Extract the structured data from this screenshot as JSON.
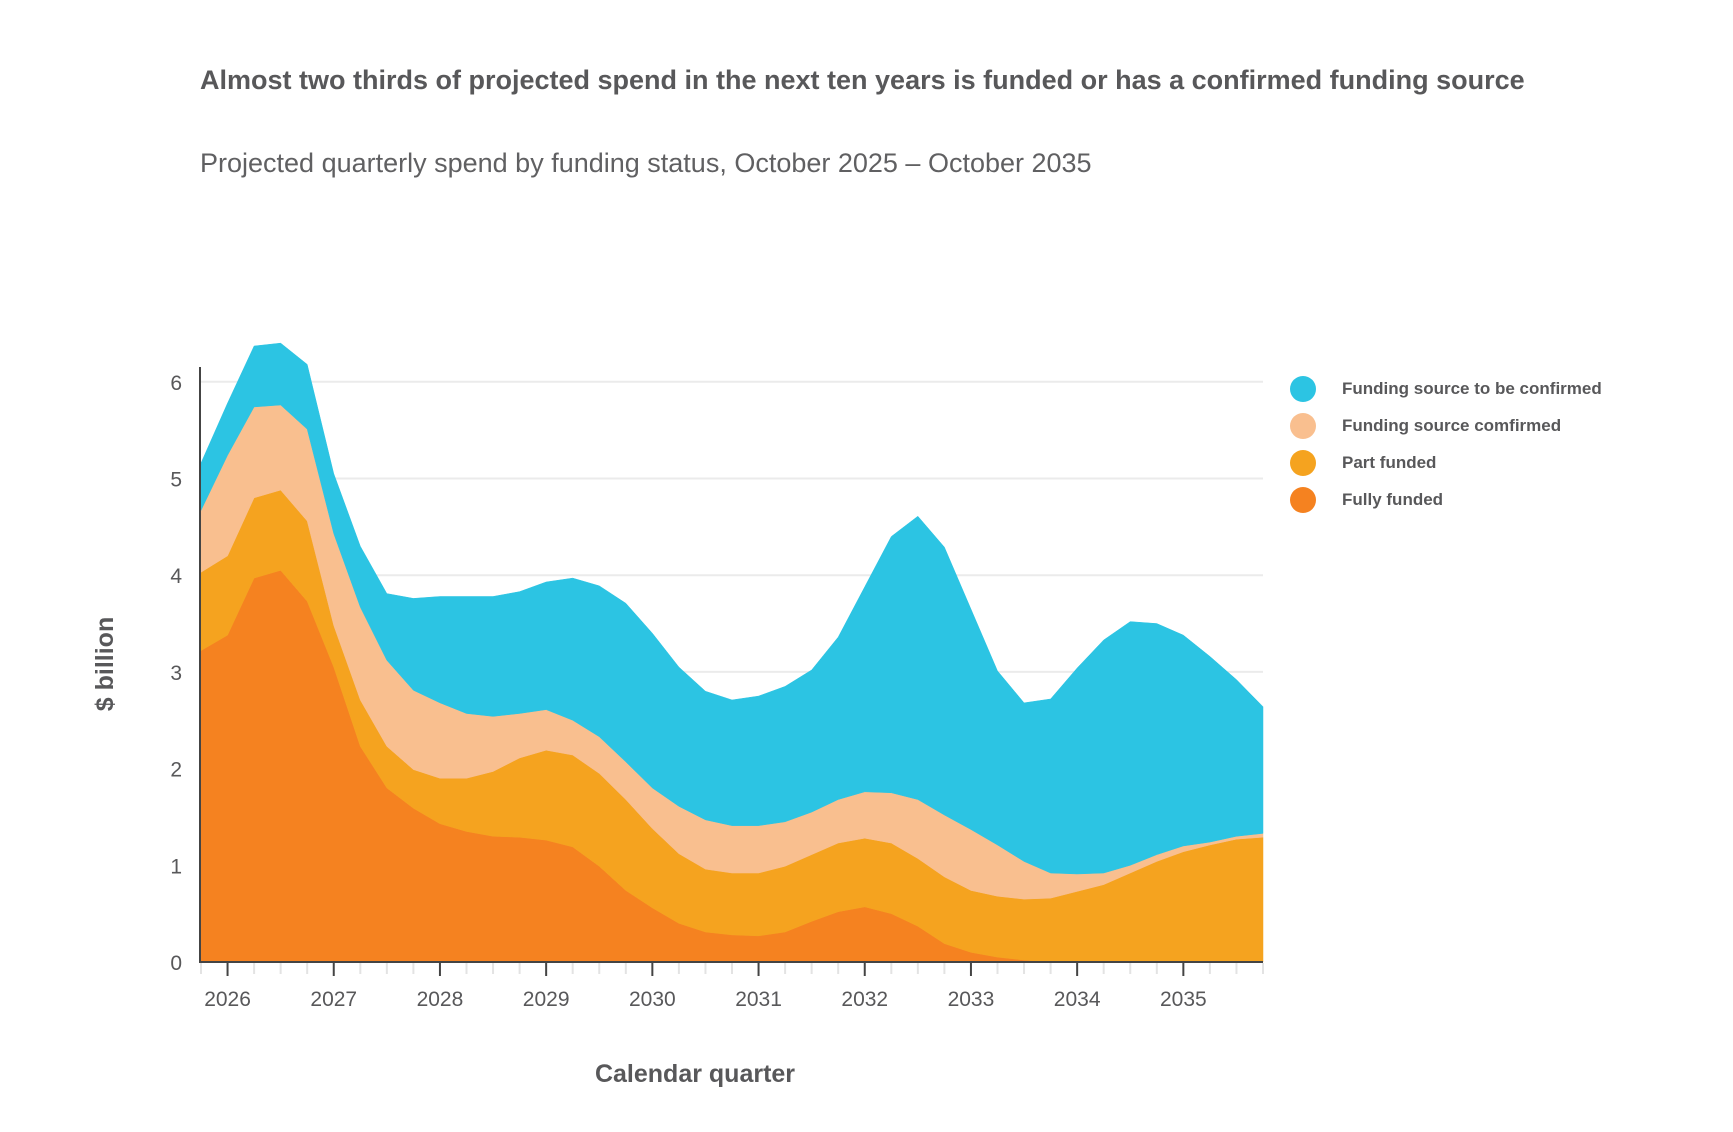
{
  "title": "Almost two thirds of projected spend in the next ten years is funded or has a confirmed funding source",
  "subtitle": "Projected quarterly spend by funding status, October 2025 – October 2035",
  "chart_data": {
    "type": "area",
    "stacked": true,
    "title": "Almost two thirds of projected spend in the next ten years is funded or has a confirmed funding source",
    "subtitle": "Projected quarterly spend by funding status, October 2025 – October 2035",
    "xlabel": "Calendar quarter",
    "ylabel": "$ billion",
    "ylim": [
      0,
      6.2
    ],
    "yticks": [
      0,
      1,
      2,
      3,
      4,
      5,
      6
    ],
    "grid": "horizontal",
    "legend_position": "right",
    "x_start": "2025 Q4",
    "x_end": "2035 Q4",
    "x_step": "quarter",
    "xtick_labels": [
      "2026",
      "2027",
      "2028",
      "2029",
      "2030",
      "2031",
      "2032",
      "2033",
      "2034",
      "2035"
    ],
    "xtick_label_quarter_index": [
      1,
      5,
      9,
      13,
      17,
      21,
      25,
      29,
      33,
      37
    ],
    "x": [
      "2025 Q4",
      "2026 Q1",
      "2026 Q2",
      "2026 Q3",
      "2026 Q4",
      "2027 Q1",
      "2027 Q2",
      "2027 Q3",
      "2027 Q4",
      "2028 Q1",
      "2028 Q2",
      "2028 Q3",
      "2028 Q4",
      "2029 Q1",
      "2029 Q2",
      "2029 Q3",
      "2029 Q4",
      "2030 Q1",
      "2030 Q2",
      "2030 Q3",
      "2030 Q4",
      "2031 Q1",
      "2031 Q2",
      "2031 Q3",
      "2031 Q4",
      "2032 Q1",
      "2032 Q2",
      "2032 Q3",
      "2032 Q4",
      "2033 Q1",
      "2033 Q2",
      "2033 Q3",
      "2033 Q4",
      "2034 Q1",
      "2034 Q2",
      "2034 Q3",
      "2034 Q4",
      "2035 Q1",
      "2035 Q2",
      "2035 Q3",
      "2035 Q4"
    ],
    "series": [
      {
        "name": "Fully funded",
        "color": "#F58220",
        "values": [
          3.22,
          3.38,
          3.97,
          4.05,
          3.73,
          3.05,
          2.23,
          1.8,
          1.59,
          1.43,
          1.35,
          1.3,
          1.29,
          1.26,
          1.19,
          0.99,
          0.74,
          0.56,
          0.4,
          0.31,
          0.28,
          0.27,
          0.31,
          0.42,
          0.52,
          0.57,
          0.5,
          0.37,
          0.19,
          0.1,
          0.05,
          0.02,
          0,
          0,
          0,
          0,
          0,
          0,
          0,
          0,
          0
        ]
      },
      {
        "name": "Part funded",
        "color": "#F5A31F",
        "values": [
          0.81,
          0.82,
          0.83,
          0.83,
          0.83,
          0.43,
          0.48,
          0.43,
          0.4,
          0.47,
          0.55,
          0.67,
          0.82,
          0.93,
          0.95,
          0.96,
          0.94,
          0.82,
          0.72,
          0.65,
          0.64,
          0.65,
          0.68,
          0.69,
          0.71,
          0.71,
          0.73,
          0.7,
          0.69,
          0.64,
          0.63,
          0.63,
          0.66,
          0.73,
          0.8,
          0.92,
          1.04,
          1.14,
          1.21,
          1.27,
          1.29
        ]
      },
      {
        "name": "Funding source comfirmed",
        "color": "#F9BF8F",
        "values": [
          0.64,
          1.04,
          0.94,
          0.88,
          0.95,
          0.95,
          0.96,
          0.89,
          0.82,
          0.78,
          0.67,
          0.57,
          0.46,
          0.42,
          0.36,
          0.38,
          0.39,
          0.42,
          0.49,
          0.51,
          0.49,
          0.49,
          0.46,
          0.44,
          0.45,
          0.48,
          0.52,
          0.61,
          0.64,
          0.63,
          0.53,
          0.39,
          0.26,
          0.18,
          0.12,
          0.08,
          0.07,
          0.06,
          0.03,
          0.03,
          0.04
        ]
      },
      {
        "name": "Funding source to be confirmed",
        "color": "#2CC4E3",
        "values": [
          0.49,
          0.54,
          0.63,
          0.64,
          0.67,
          0.62,
          0.63,
          0.69,
          0.95,
          1.1,
          1.21,
          1.24,
          1.26,
          1.32,
          1.47,
          1.56,
          1.64,
          1.6,
          1.44,
          1.33,
          1.3,
          1.34,
          1.4,
          1.47,
          1.68,
          2.12,
          2.65,
          2.93,
          2.77,
          2.28,
          1.8,
          1.64,
          1.8,
          2.13,
          2.41,
          2.52,
          2.39,
          2.18,
          1.92,
          1.62,
          1.31
        ]
      }
    ]
  },
  "legend": {
    "items": [
      {
        "label": "Funding source to be confirmed",
        "color": "#2CC4E3"
      },
      {
        "label": "Funding source comfirmed",
        "color": "#F9BF8F"
      },
      {
        "label": "Part funded",
        "color": "#F5A31F"
      },
      {
        "label": "Fully funded",
        "color": "#F58220"
      }
    ]
  }
}
